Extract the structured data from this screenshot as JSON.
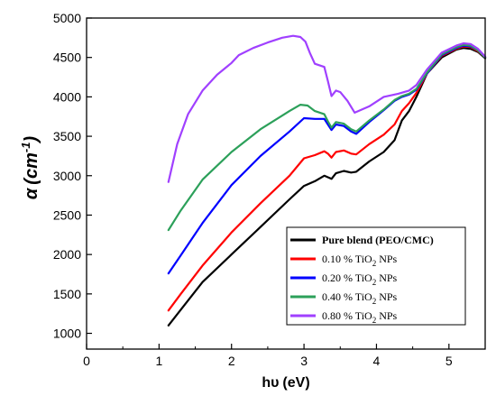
{
  "chart_data": {
    "type": "line",
    "xlabel": {
      "main": "hυ",
      "unit": "(eV)"
    },
    "ylabel": {
      "main": "α",
      "unit_open": "(cm",
      "unit_sup": "-1",
      "unit_close": ")"
    },
    "xlim": [
      0,
      5.5
    ],
    "ylim": [
      800,
      5000
    ],
    "xticks": [
      0,
      1,
      2,
      3,
      4,
      5
    ],
    "yticks": [
      1000,
      1500,
      2000,
      2500,
      3000,
      3500,
      4000,
      4500,
      5000
    ],
    "grid": false,
    "legend_position": "bottom-right",
    "series": [
      {
        "name": "Pure blend (PEO/CMC)",
        "legend_parts": [
          "Pure blend (PEO/CMC)"
        ],
        "color": "#000000",
        "points": [
          [
            1.13,
            1100
          ],
          [
            1.3,
            1300
          ],
          [
            1.6,
            1650
          ],
          [
            2.0,
            2000
          ],
          [
            2.4,
            2350
          ],
          [
            2.8,
            2700
          ],
          [
            3.0,
            2870
          ],
          [
            3.15,
            2930
          ],
          [
            3.28,
            3000
          ],
          [
            3.33,
            2980
          ],
          [
            3.38,
            2960
          ],
          [
            3.44,
            3030
          ],
          [
            3.55,
            3060
          ],
          [
            3.65,
            3040
          ],
          [
            3.72,
            3050
          ],
          [
            3.9,
            3180
          ],
          [
            4.1,
            3300
          ],
          [
            4.25,
            3450
          ],
          [
            4.35,
            3700
          ],
          [
            4.45,
            3820
          ],
          [
            4.55,
            4000
          ],
          [
            4.7,
            4300
          ],
          [
            4.9,
            4500
          ],
          [
            5.1,
            4600
          ],
          [
            5.2,
            4620
          ],
          [
            5.3,
            4610
          ],
          [
            5.4,
            4570
          ],
          [
            5.5,
            4490
          ]
        ]
      },
      {
        "name": "0.10 % TiO2 NPs",
        "legend_parts": [
          "0.10 % TiO",
          "2",
          " NPs"
        ],
        "color": "#ff0000",
        "points": [
          [
            1.13,
            1290
          ],
          [
            1.3,
            1500
          ],
          [
            1.6,
            1860
          ],
          [
            2.0,
            2280
          ],
          [
            2.4,
            2650
          ],
          [
            2.8,
            3000
          ],
          [
            3.0,
            3220
          ],
          [
            3.15,
            3260
          ],
          [
            3.28,
            3310
          ],
          [
            3.33,
            3280
          ],
          [
            3.38,
            3230
          ],
          [
            3.44,
            3300
          ],
          [
            3.55,
            3320
          ],
          [
            3.65,
            3280
          ],
          [
            3.72,
            3270
          ],
          [
            3.9,
            3400
          ],
          [
            4.1,
            3520
          ],
          [
            4.25,
            3650
          ],
          [
            4.35,
            3820
          ],
          [
            4.45,
            3920
          ],
          [
            4.55,
            4050
          ],
          [
            4.7,
            4300
          ],
          [
            4.9,
            4520
          ],
          [
            5.1,
            4610
          ],
          [
            5.2,
            4640
          ],
          [
            5.3,
            4630
          ],
          [
            5.4,
            4580
          ],
          [
            5.5,
            4500
          ]
        ]
      },
      {
        "name": "0.20 % TiO2 NPs",
        "legend_parts": [
          "0.20 % TiO",
          "2",
          " NPs"
        ],
        "color": "#0000ff",
        "points": [
          [
            1.13,
            1760
          ],
          [
            1.3,
            1990
          ],
          [
            1.6,
            2400
          ],
          [
            2.0,
            2880
          ],
          [
            2.4,
            3250
          ],
          [
            2.8,
            3560
          ],
          [
            3.0,
            3730
          ],
          [
            3.15,
            3720
          ],
          [
            3.28,
            3720
          ],
          [
            3.33,
            3650
          ],
          [
            3.38,
            3580
          ],
          [
            3.44,
            3650
          ],
          [
            3.55,
            3630
          ],
          [
            3.65,
            3560
          ],
          [
            3.72,
            3530
          ],
          [
            3.9,
            3680
          ],
          [
            4.1,
            3830
          ],
          [
            4.25,
            3950
          ],
          [
            4.35,
            4000
          ],
          [
            4.45,
            4030
          ],
          [
            4.55,
            4090
          ],
          [
            4.7,
            4300
          ],
          [
            4.9,
            4530
          ],
          [
            5.1,
            4620
          ],
          [
            5.2,
            4650
          ],
          [
            5.3,
            4640
          ],
          [
            5.4,
            4590
          ],
          [
            5.5,
            4500
          ]
        ]
      },
      {
        "name": "0.40 % TiO2 NPs",
        "legend_parts": [
          " 0.40 % TiO",
          "2",
          " NPs"
        ],
        "color": "#2ca05a",
        "points": [
          [
            1.13,
            2310
          ],
          [
            1.3,
            2560
          ],
          [
            1.6,
            2950
          ],
          [
            2.0,
            3300
          ],
          [
            2.4,
            3590
          ],
          [
            2.8,
            3820
          ],
          [
            2.95,
            3900
          ],
          [
            3.05,
            3890
          ],
          [
            3.15,
            3820
          ],
          [
            3.28,
            3780
          ],
          [
            3.33,
            3690
          ],
          [
            3.38,
            3610
          ],
          [
            3.44,
            3680
          ],
          [
            3.55,
            3660
          ],
          [
            3.65,
            3590
          ],
          [
            3.72,
            3560
          ],
          [
            3.9,
            3700
          ],
          [
            4.1,
            3840
          ],
          [
            4.25,
            3960
          ],
          [
            4.35,
            4010
          ],
          [
            4.45,
            4040
          ],
          [
            4.55,
            4100
          ],
          [
            4.7,
            4310
          ],
          [
            4.9,
            4540
          ],
          [
            5.1,
            4630
          ],
          [
            5.2,
            4660
          ],
          [
            5.3,
            4650
          ],
          [
            5.4,
            4590
          ],
          [
            5.5,
            4500
          ]
        ]
      },
      {
        "name": "0.80 % TiO2 NPs",
        "legend_parts": [
          "0.80 % TiO",
          "2",
          " NPs"
        ],
        "color": "#a040ff",
        "points": [
          [
            1.13,
            2920
          ],
          [
            1.25,
            3400
          ],
          [
            1.4,
            3780
          ],
          [
            1.6,
            4080
          ],
          [
            1.8,
            4280
          ],
          [
            2.0,
            4430
          ],
          [
            2.1,
            4530
          ],
          [
            2.3,
            4620
          ],
          [
            2.5,
            4690
          ],
          [
            2.7,
            4750
          ],
          [
            2.85,
            4775
          ],
          [
            2.95,
            4760
          ],
          [
            3.02,
            4700
          ],
          [
            3.08,
            4560
          ],
          [
            3.15,
            4420
          ],
          [
            3.28,
            4380
          ],
          [
            3.33,
            4200
          ],
          [
            3.38,
            4010
          ],
          [
            3.44,
            4080
          ],
          [
            3.5,
            4060
          ],
          [
            3.6,
            3950
          ],
          [
            3.7,
            3800
          ],
          [
            3.9,
            3880
          ],
          [
            4.1,
            4000
          ],
          [
            4.3,
            4040
          ],
          [
            4.45,
            4080
          ],
          [
            4.55,
            4150
          ],
          [
            4.7,
            4350
          ],
          [
            4.9,
            4560
          ],
          [
            5.1,
            4650
          ],
          [
            5.2,
            4680
          ],
          [
            5.3,
            4670
          ],
          [
            5.4,
            4610
          ],
          [
            5.5,
            4510
          ]
        ]
      }
    ]
  }
}
